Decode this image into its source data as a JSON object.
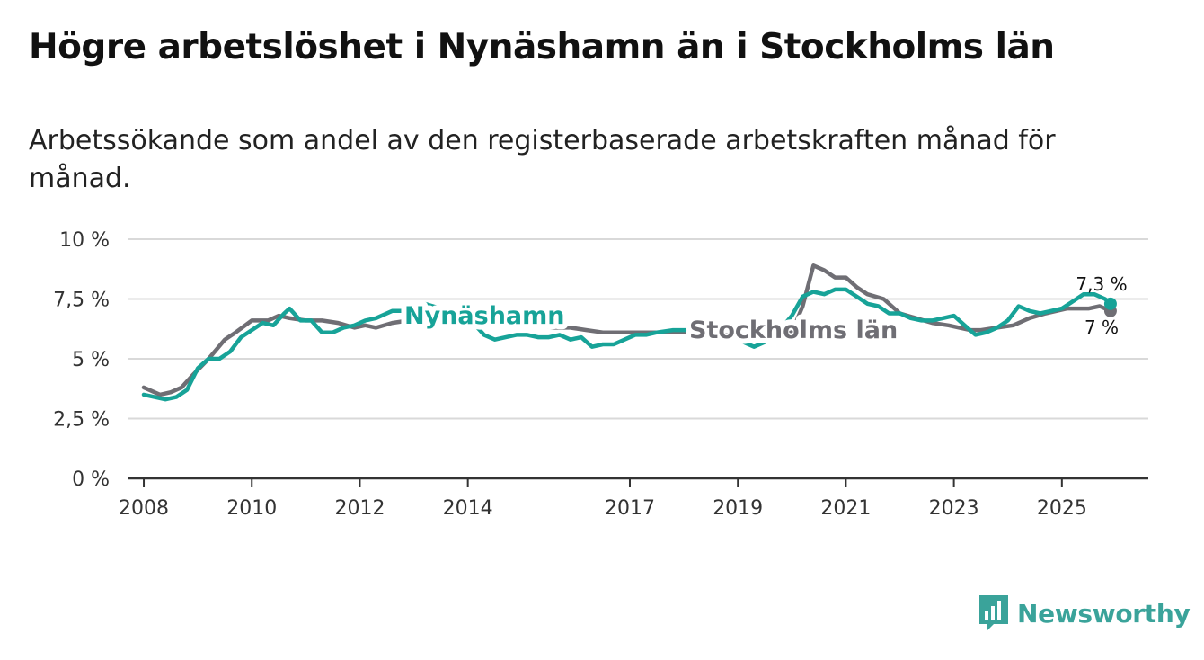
{
  "title": "Högre arbetslöshet i Nynäshamn än i Stockholms län",
  "subtitle": "Arbetssökande som andel av den registerbaserade arbetskraften månad för månad.",
  "brand": "Newsworthy",
  "colors": {
    "nynashamn": "#17a398",
    "stockholm": "#6f6e74",
    "grid": "#d9d9d9",
    "axis": "#333333"
  },
  "chart_data": {
    "type": "line",
    "title": "Högre arbetslöshet i Nynäshamn än i Stockholms län",
    "xlabel": "",
    "ylabel": "",
    "ylim": [
      0,
      10
    ],
    "xlim": [
      2007.7,
      2026.6
    ],
    "y_ticks": [
      {
        "value": 0,
        "label": "0 %"
      },
      {
        "value": 2.5,
        "label": "2,5 %"
      },
      {
        "value": 5,
        "label": "5 %"
      },
      {
        "value": 7.5,
        "label": "7,5 %"
      },
      {
        "value": 10,
        "label": "10 %"
      }
    ],
    "x_ticks": [
      {
        "value": 2008,
        "label": "2008"
      },
      {
        "value": 2010,
        "label": "2010"
      },
      {
        "value": 2012,
        "label": "2012"
      },
      {
        "value": 2014,
        "label": "2014"
      },
      {
        "value": 2017,
        "label": "2017"
      },
      {
        "value": 2019,
        "label": "2019"
      },
      {
        "value": 2021,
        "label": "2021"
      },
      {
        "value": 2023,
        "label": "2023"
      },
      {
        "value": 2025,
        "label": "2025"
      }
    ],
    "series": [
      {
        "name": "Stockholms län",
        "x": [
          2008.0,
          2008.3,
          2008.5,
          2008.7,
          2008.9,
          2009.2,
          2009.5,
          2009.7,
          2010.0,
          2010.3,
          2010.5,
          2010.7,
          2011.0,
          2011.3,
          2011.6,
          2011.9,
          2012.1,
          2012.3,
          2012.6,
          2012.9,
          2013.2,
          2013.5,
          2013.8,
          2014.1,
          2014.4,
          2014.7,
          2015.0,
          2015.3,
          2015.6,
          2015.9,
          2016.2,
          2016.5,
          2016.8,
          2017.1,
          2017.4,
          2017.7,
          2018.0,
          2018.3,
          2018.6,
          2018.9,
          2019.2,
          2019.4,
          2019.7,
          2020.0,
          2020.2,
          2020.4,
          2020.6,
          2020.8,
          2021.0,
          2021.2,
          2021.4,
          2021.7,
          2022.0,
          2022.3,
          2022.6,
          2022.9,
          2023.1,
          2023.3,
          2023.5,
          2023.8,
          2024.1,
          2024.4,
          2024.7,
          2024.9,
          2025.1,
          2025.3,
          2025.5,
          2025.7,
          2025.9
        ],
        "values": [
          3.8,
          3.5,
          3.6,
          3.8,
          4.3,
          5.0,
          5.8,
          6.1,
          6.6,
          6.6,
          6.8,
          6.7,
          6.6,
          6.6,
          6.5,
          6.3,
          6.4,
          6.3,
          6.5,
          6.6,
          6.6,
          6.5,
          6.5,
          6.5,
          6.4,
          6.4,
          6.4,
          6.4,
          6.3,
          6.3,
          6.2,
          6.1,
          6.1,
          6.1,
          6.1,
          6.1,
          6.1,
          6.1,
          6.0,
          6.0,
          5.9,
          5.9,
          6.0,
          6.1,
          7.2,
          8.9,
          8.7,
          8.4,
          8.4,
          8.0,
          7.7,
          7.5,
          6.9,
          6.7,
          6.5,
          6.4,
          6.3,
          6.2,
          6.2,
          6.3,
          6.4,
          6.7,
          6.9,
          7.0,
          7.1,
          7.1,
          7.1,
          7.2,
          7.0
        ]
      },
      {
        "name": "Nynäshamn",
        "x": [
          2008.0,
          2008.2,
          2008.4,
          2008.6,
          2008.8,
          2009.0,
          2009.2,
          2009.4,
          2009.6,
          2009.8,
          2010.0,
          2010.2,
          2010.4,
          2010.6,
          2010.7,
          2010.9,
          2011.1,
          2011.3,
          2011.5,
          2011.7,
          2011.9,
          2012.1,
          2012.3,
          2012.6,
          2012.9,
          2013.2,
          2013.5,
          2013.8,
          2014.1,
          2014.3,
          2014.5,
          2014.7,
          2014.9,
          2015.1,
          2015.3,
          2015.5,
          2015.7,
          2015.9,
          2016.1,
          2016.3,
          2016.5,
          2016.7,
          2016.9,
          2017.1,
          2017.3,
          2017.5,
          2017.8,
          2018.1,
          2018.4,
          2018.7,
          2019.0,
          2019.3,
          2019.5,
          2019.7,
          2020.0,
          2020.2,
          2020.4,
          2020.6,
          2020.8,
          2021.0,
          2021.2,
          2021.4,
          2021.6,
          2021.8,
          2022.0,
          2022.2,
          2022.4,
          2022.6,
          2022.8,
          2023.0,
          2023.2,
          2023.4,
          2023.6,
          2023.8,
          2024.0,
          2024.2,
          2024.4,
          2024.6,
          2024.8,
          2025.0,
          2025.2,
          2025.4,
          2025.6,
          2025.8,
          2025.9
        ],
        "values": [
          3.5,
          3.4,
          3.3,
          3.4,
          3.7,
          4.6,
          5.0,
          5.0,
          5.3,
          5.9,
          6.2,
          6.5,
          6.4,
          6.9,
          7.1,
          6.6,
          6.6,
          6.1,
          6.1,
          6.3,
          6.4,
          6.6,
          6.7,
          7.0,
          7.0,
          7.3,
          7.1,
          6.8,
          6.5,
          6.0,
          5.8,
          5.9,
          6.0,
          6.0,
          5.9,
          5.9,
          6.0,
          5.8,
          5.9,
          5.5,
          5.6,
          5.6,
          5.8,
          6.0,
          6.0,
          6.1,
          6.2,
          6.2,
          6.1,
          6.0,
          5.8,
          5.5,
          5.7,
          6.0,
          6.8,
          7.6,
          7.8,
          7.7,
          7.9,
          7.9,
          7.6,
          7.3,
          7.2,
          6.9,
          6.9,
          6.7,
          6.6,
          6.6,
          6.7,
          6.8,
          6.4,
          6.0,
          6.1,
          6.3,
          6.6,
          7.2,
          7.0,
          6.9,
          7.0,
          7.1,
          7.4,
          7.7,
          7.7,
          7.5,
          7.3
        ]
      }
    ],
    "annotations": [
      {
        "series": "Nynäshamn",
        "text": "Nynäshamn"
      },
      {
        "series": "Stockholms län",
        "text": "Stockholms län"
      },
      {
        "series": "Nynäshamn",
        "text": "7,3 %"
      },
      {
        "series": "Stockholms län",
        "text": "7 %"
      }
    ]
  }
}
